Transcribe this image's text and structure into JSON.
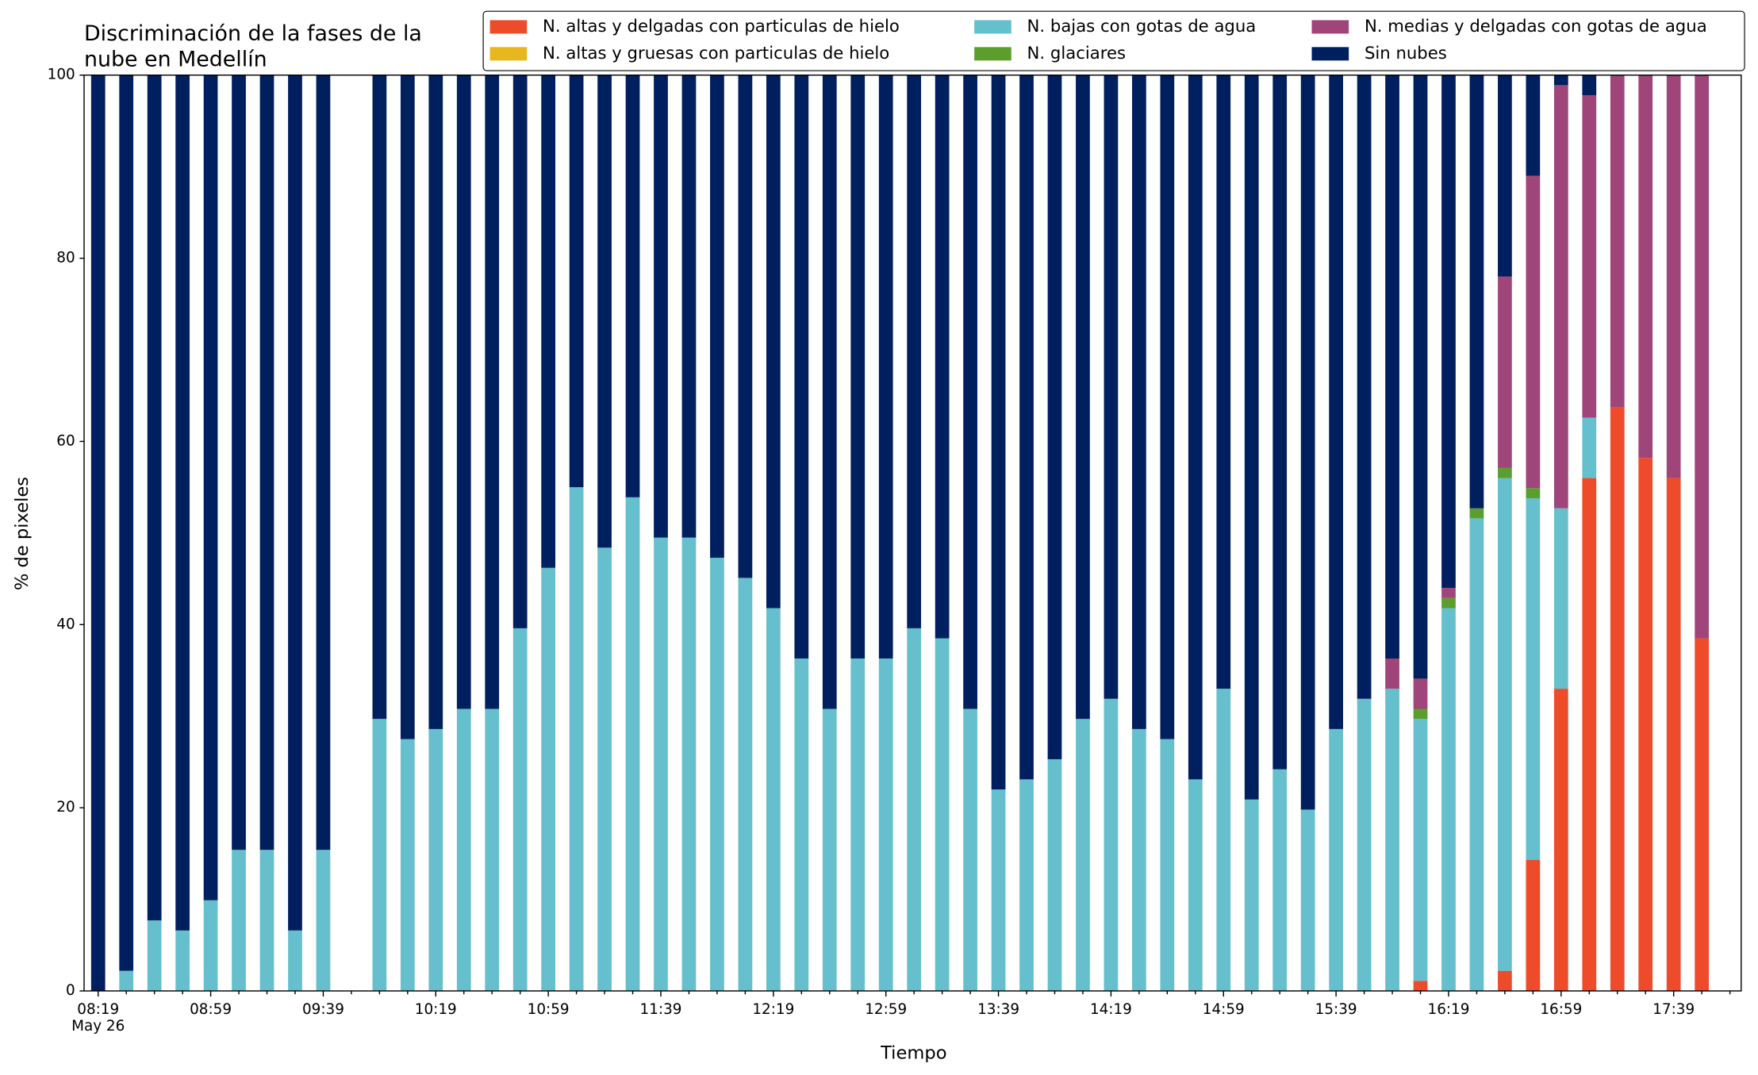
{
  "chart_data": {
    "type": "stacked-bar",
    "title": [
      "Discriminación de la fases de la",
      "nube en Medellín"
    ],
    "xlabel": "Tiempo",
    "ylabel": "% de pixeles",
    "categories": [
      "08:19\nMay 26",
      null,
      null,
      null,
      "08:59",
      null,
      null,
      null,
      "09:39",
      null,
      null,
      null,
      "10:19",
      null,
      null,
      null,
      "10:59",
      null,
      null,
      null,
      "11:39",
      null,
      null,
      null,
      "12:19",
      null,
      null,
      null,
      "12:59",
      null,
      null,
      null,
      "13:39",
      null,
      null,
      null,
      "14:19",
      null,
      null,
      null,
      "14:59",
      null,
      null,
      null,
      "15:39",
      null,
      null,
      null,
      "16:19",
      null,
      null,
      null,
      "16:59",
      null,
      null,
      null,
      "17:39",
      null
    ],
    "ylim": [
      0,
      100
    ],
    "yticks": [
      0,
      20,
      40,
      60,
      80,
      100
    ],
    "series": [
      {
        "name": "N. altas y delgadas con particulas de hielo",
        "color": "#ee4b2b",
        "values": [
          0,
          0,
          0,
          0,
          0,
          0,
          0,
          0,
          0,
          null,
          0,
          0,
          0,
          0,
          0,
          0,
          0,
          0,
          0,
          0,
          0,
          0,
          0,
          0,
          0,
          0,
          0,
          0,
          0,
          0,
          0,
          0,
          0,
          0,
          0,
          0,
          0,
          0,
          0,
          0,
          0,
          0,
          0,
          0,
          0,
          0,
          0,
          1.1,
          0,
          0,
          2.2,
          14.3,
          33.0,
          56.0,
          63.7,
          58.2,
          56.0,
          38.5
        ]
      },
      {
        "name": "N. altas y gruesas con particulas de hielo",
        "color": "#e6b81e",
        "values": [
          0,
          0,
          0,
          0,
          0,
          0,
          0,
          0,
          0,
          null,
          0,
          0,
          0,
          0,
          0,
          0,
          0,
          0,
          0,
          0,
          0,
          0,
          0,
          0,
          0,
          0,
          0,
          0,
          0,
          0,
          0,
          0,
          0,
          0,
          0,
          0,
          0,
          0,
          0,
          0,
          0,
          0,
          0,
          0,
          0,
          0,
          0,
          0,
          0,
          0,
          0,
          0,
          0,
          0,
          0,
          0,
          0,
          0
        ]
      },
      {
        "name": "N. bajas con gotas de agua",
        "color": "#66bfcc",
        "values": [
          0,
          2.2,
          7.7,
          6.6,
          9.9,
          15.4,
          15.4,
          6.6,
          15.4,
          null,
          29.7,
          27.5,
          28.6,
          30.8,
          30.8,
          39.6,
          46.2,
          55.0,
          48.4,
          53.9,
          49.5,
          49.5,
          47.3,
          45.1,
          41.8,
          36.3,
          30.8,
          36.3,
          36.3,
          39.6,
          38.5,
          30.8,
          22.0,
          23.1,
          25.3,
          29.7,
          31.9,
          28.6,
          27.5,
          23.1,
          33.0,
          20.9,
          24.2,
          19.8,
          28.6,
          31.9,
          33.0,
          28.6,
          41.8,
          51.6,
          53.8,
          39.5,
          19.7,
          6.6,
          0,
          0,
          0,
          0
        ]
      },
      {
        "name": "N. glaciares",
        "color": "#5b9e2e",
        "values": [
          0,
          0,
          0,
          0,
          0,
          0,
          0,
          0,
          0,
          null,
          0,
          0,
          0,
          0,
          0,
          0,
          0,
          0,
          0,
          0,
          0,
          0,
          0,
          0,
          0,
          0,
          0,
          0,
          0,
          0,
          0,
          0,
          0,
          0,
          0,
          0,
          0,
          0,
          0,
          0,
          0,
          0,
          0,
          0,
          0,
          0,
          0,
          1.1,
          1.1,
          1.1,
          1.1,
          1.1,
          0,
          0,
          0,
          0,
          0,
          0
        ]
      },
      {
        "name": "N. medias y delgadas con gotas de agua",
        "color": "#a0457a",
        "values": [
          0,
          0,
          0,
          0,
          0,
          0,
          0,
          0,
          0,
          null,
          0,
          0,
          0,
          0,
          0,
          0,
          0,
          0,
          0,
          0,
          0,
          0,
          0,
          0,
          0,
          0,
          0,
          0,
          0,
          0,
          0,
          0,
          0,
          0,
          0,
          0,
          0,
          0,
          0,
          0,
          0,
          0,
          0,
          0,
          0,
          0,
          3.3,
          3.3,
          1.1,
          0,
          20.9,
          34.1,
          46.2,
          35.2,
          36.3,
          41.8,
          44.0,
          61.5
        ]
      },
      {
        "name": "Sin nubes",
        "color": "#001f5f",
        "values": [
          100,
          97.8,
          92.3,
          93.4,
          90.1,
          84.6,
          84.6,
          93.4,
          84.6,
          null,
          70.3,
          72.5,
          71.4,
          69.2,
          69.2,
          60.4,
          53.8,
          45.0,
          51.6,
          46.1,
          50.5,
          50.5,
          52.7,
          54.9,
          58.2,
          63.7,
          69.2,
          63.7,
          63.7,
          60.4,
          61.5,
          69.2,
          78.0,
          76.9,
          74.7,
          70.3,
          68.1,
          71.4,
          72.5,
          76.9,
          67.0,
          79.1,
          75.8,
          80.2,
          71.4,
          68.1,
          63.7,
          65.9,
          56.0,
          47.3,
          22.0,
          11.0,
          1.1,
          2.2,
          0,
          0,
          0,
          0
        ]
      }
    ]
  }
}
